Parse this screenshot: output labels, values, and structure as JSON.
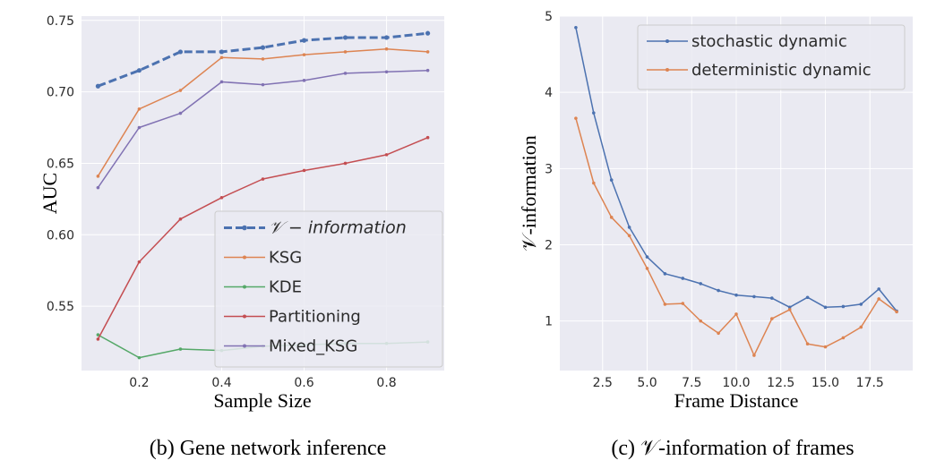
{
  "chart_data": [
    {
      "type": "line",
      "caption": "(b) Gene network inference",
      "xlabel": "Sample Size",
      "ylabel": "AUC",
      "xlim": [
        0.06,
        0.94
      ],
      "ylim": [
        0.505,
        0.753
      ],
      "xticks": [
        0.2,
        0.4,
        0.6,
        0.8
      ],
      "xtick_labels": [
        "0.2",
        "0.4",
        "0.6",
        "0.8"
      ],
      "yticks": [
        0.55,
        0.6,
        0.65,
        0.7,
        0.75
      ],
      "ytick_labels": [
        "0.55",
        "0.60",
        "0.65",
        "0.70",
        "0.75"
      ],
      "grid": true,
      "legend_position": "lower-right",
      "x": [
        0.1,
        0.2,
        0.3,
        0.4,
        0.5,
        0.6,
        0.7,
        0.8,
        0.9
      ],
      "series": [
        {
          "name": "𝒱 − information",
          "color": "#4c72b0",
          "dashed": true,
          "width": 3,
          "values": [
            0.704,
            0.715,
            0.728,
            0.728,
            0.731,
            0.736,
            0.738,
            0.738,
            0.741
          ]
        },
        {
          "name": "KSG",
          "color": "#dd8452",
          "dashed": false,
          "width": 1.5,
          "values": [
            0.641,
            0.688,
            0.701,
            0.724,
            0.723,
            0.726,
            0.728,
            0.73,
            0.728
          ]
        },
        {
          "name": "KDE",
          "color": "#55a868",
          "dashed": false,
          "width": 1.5,
          "values": [
            0.53,
            0.514,
            0.52,
            0.519,
            0.522,
            0.523,
            0.524,
            0.524,
            0.525
          ]
        },
        {
          "name": "Partitioning",
          "color": "#c44e52",
          "dashed": false,
          "width": 1.5,
          "values": [
            0.527,
            0.581,
            0.611,
            0.626,
            0.639,
            0.645,
            0.65,
            0.656,
            0.668
          ]
        },
        {
          "name": "Mixed_KSG",
          "color": "#8172b3",
          "dashed": false,
          "width": 1.5,
          "values": [
            0.633,
            0.675,
            0.685,
            0.707,
            0.705,
            0.708,
            0.713,
            0.714,
            0.715
          ]
        }
      ]
    },
    {
      "type": "line",
      "caption": "(c) 𝒱-information of frames",
      "xlabel": "Frame Distance",
      "ylabel": "𝒱-information",
      "xlim": [
        0.1,
        19.9
      ],
      "ylim": [
        0.35,
        5.0
      ],
      "xticks": [
        2.5,
        5.0,
        7.5,
        10.0,
        12.5,
        15.0,
        17.5
      ],
      "xtick_labels": [
        "2.5",
        "5.0",
        "7.5",
        "10.0",
        "12.5",
        "15.0",
        "17.5"
      ],
      "yticks": [
        1,
        2,
        3,
        4,
        5
      ],
      "ytick_labels": [
        "1",
        "2",
        "3",
        "4",
        "5"
      ],
      "grid": true,
      "legend_position": "top-right",
      "x": [
        1,
        2,
        3,
        4,
        5,
        6,
        7,
        8,
        9,
        10,
        11,
        12,
        13,
        14,
        15,
        16,
        17,
        18,
        19
      ],
      "series": [
        {
          "name": "stochastic dynamic",
          "color": "#4c72b0",
          "dashed": false,
          "width": 1.5,
          "values": [
            4.85,
            3.73,
            2.85,
            2.23,
            1.84,
            1.62,
            1.56,
            1.49,
            1.4,
            1.34,
            1.32,
            1.3,
            1.18,
            1.31,
            1.18,
            1.19,
            1.22,
            1.42,
            1.13
          ]
        },
        {
          "name": "deterministic dynamic",
          "color": "#dd8452",
          "dashed": false,
          "width": 1.5,
          "values": [
            3.66,
            2.81,
            2.36,
            2.12,
            1.69,
            1.22,
            1.23,
            1.0,
            0.84,
            1.09,
            0.55,
            1.03,
            1.15,
            0.7,
            0.66,
            0.78,
            0.92,
            1.29,
            1.12
          ]
        }
      ]
    }
  ]
}
